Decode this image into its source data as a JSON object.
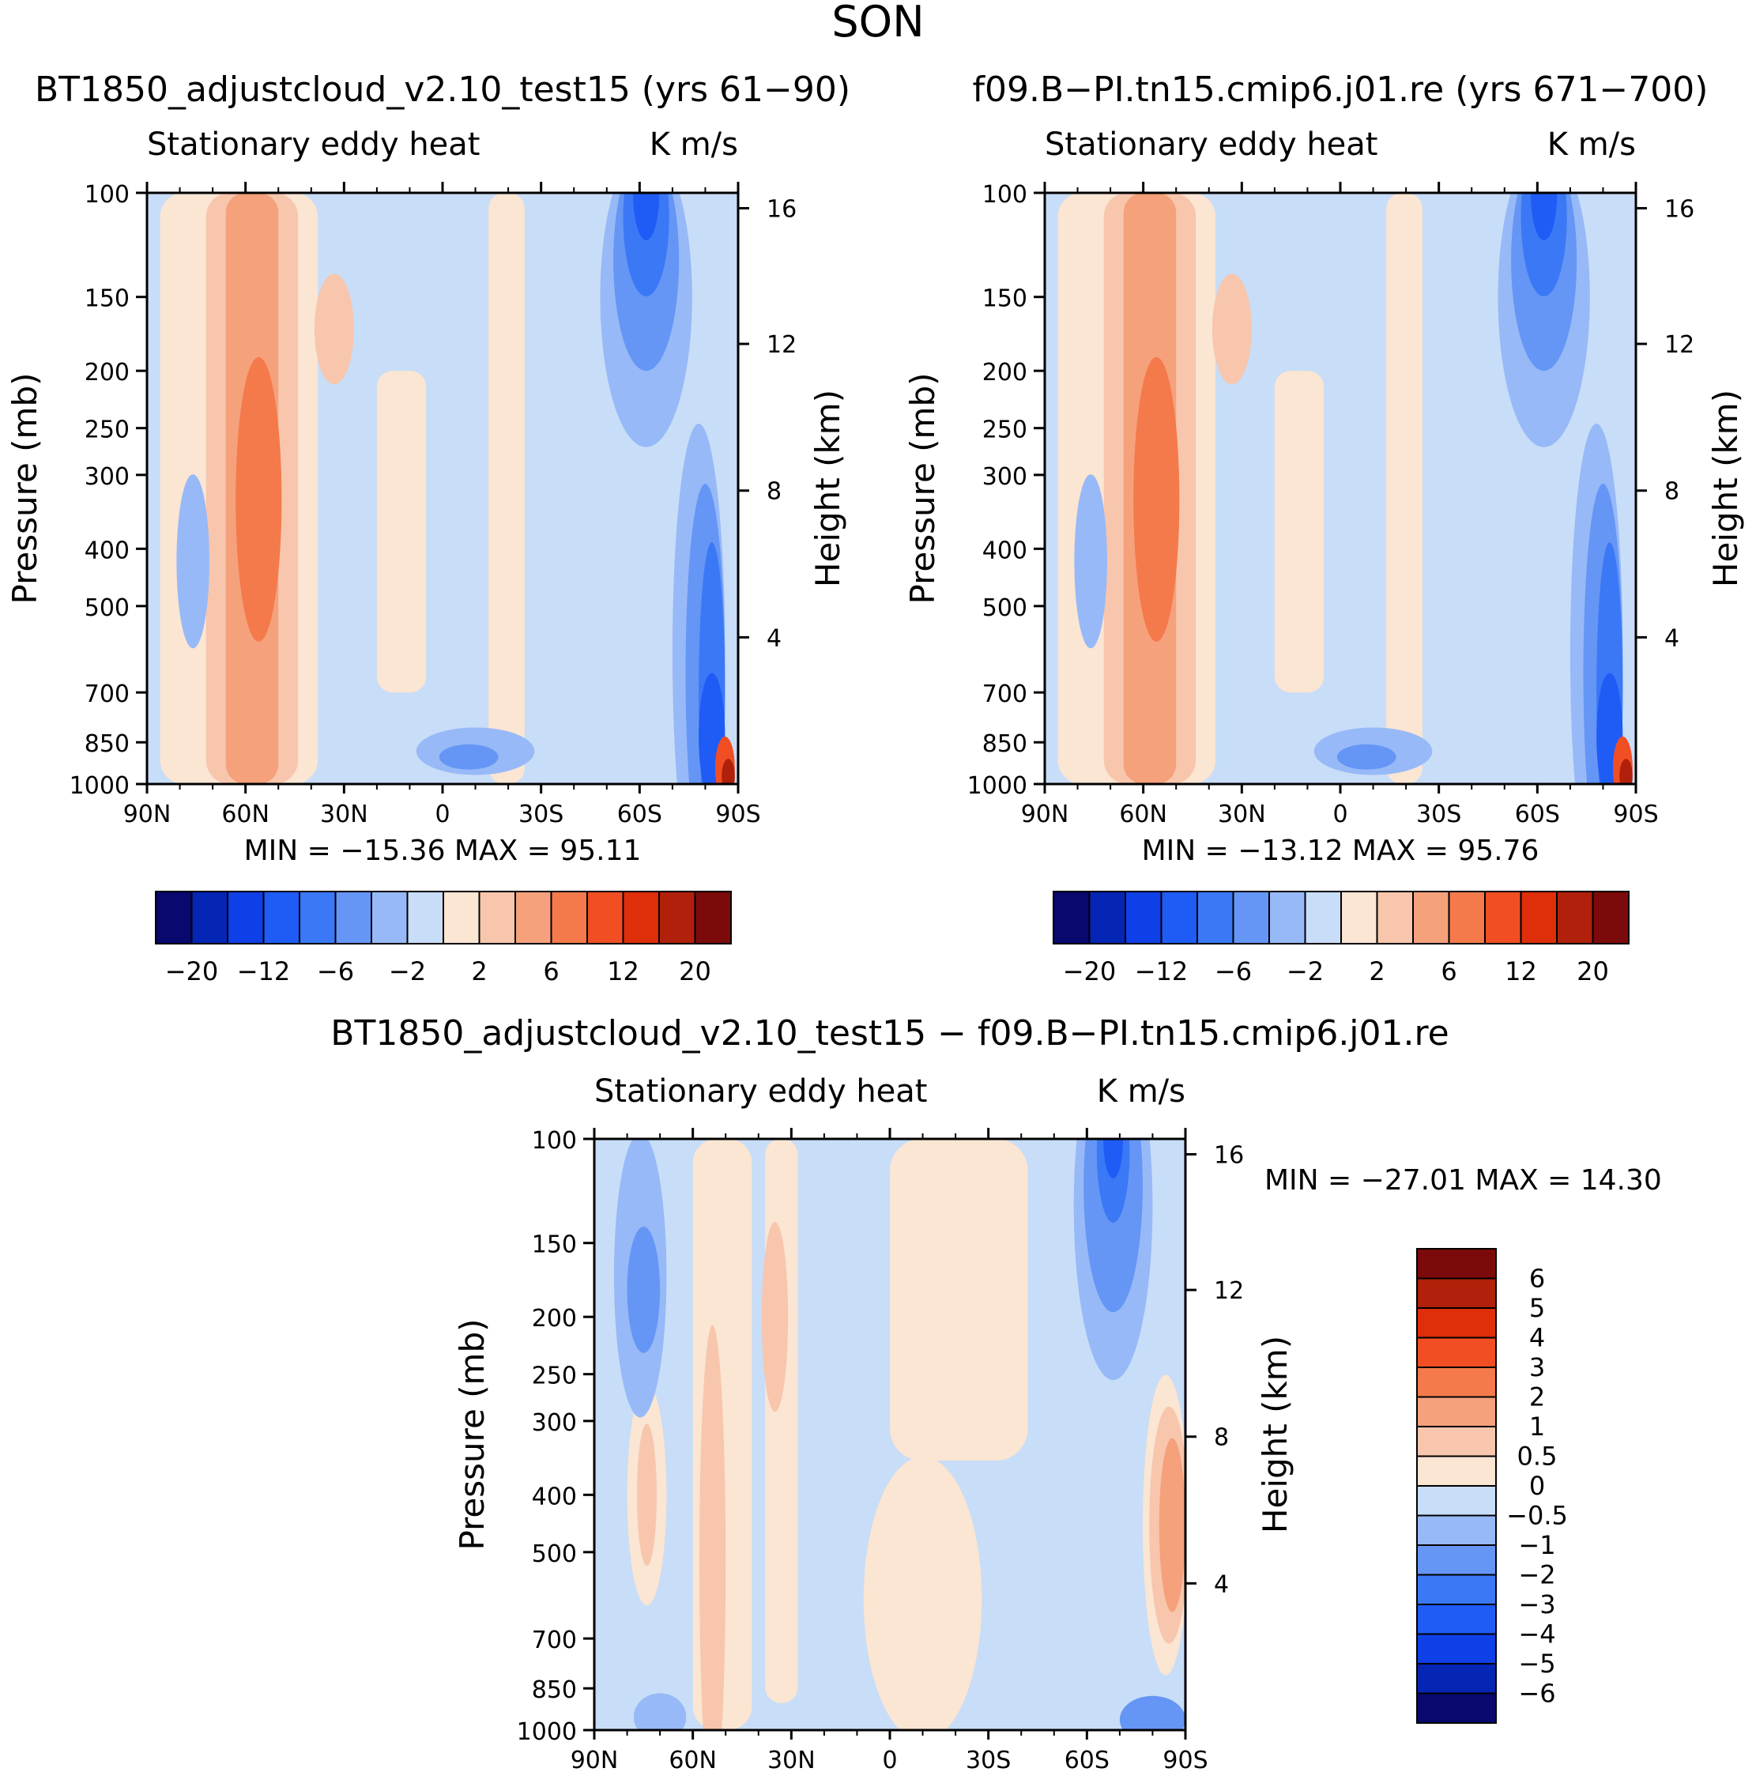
{
  "figure": {
    "title": "SON"
  },
  "palette": {
    "main": [
      "#08086e",
      "#0525b4",
      "#0f3fe6",
      "#1f5bf5",
      "#3b78f5",
      "#6596f5",
      "#97b9f7",
      "#c8ddf7",
      "#fbe5d3",
      "#f7c6ad",
      "#f5a17c",
      "#f47a4b",
      "#f14e23",
      "#de2e0a",
      "#b0200a",
      "#7d0a0a"
    ],
    "diff": [
      "#08086e",
      "#0525b4",
      "#0f3fe6",
      "#1f5bf5",
      "#3b78f5",
      "#6596f5",
      "#97b9f7",
      "#c8ddf7",
      "#fbe5d3",
      "#f7c6ad",
      "#f5a17c",
      "#f47a4b",
      "#f14e23",
      "#de2e0a",
      "#b0200a",
      "#7d0a0a"
    ]
  },
  "chart_data": [
    {
      "type": "contour",
      "title": "BT1850_adjustcloud_v2.10_test15 (yrs 61−90)",
      "subtitle_left": "Stationary eddy heat",
      "subtitle_right": "K m/s",
      "xlabel": "",
      "ylabel": "Pressure (mb)",
      "ylabel_right": "Height (km)",
      "x_ticks": [
        "90N",
        "60N",
        "30N",
        "0",
        "30S",
        "60S",
        "90S"
      ],
      "x_range": [
        90,
        -90
      ],
      "y_ticks": [
        "100",
        "150",
        "200",
        "250",
        "300",
        "400",
        "500",
        "700",
        "850",
        "1000"
      ],
      "y_range": [
        100,
        1000
      ],
      "height_ticks": [
        "16",
        "12",
        "8",
        "4"
      ],
      "min_label": "MIN =  −15.36   MAX =    95.11",
      "levels": [
        "−20",
        "−12",
        "−6",
        "−2",
        "2",
        "6",
        "12",
        "20"
      ],
      "min": -15.36,
      "max": 95.11
    },
    {
      "type": "contour",
      "title": "f09.B−PI.tn15.cmip6.j01.re (yrs 671−700)",
      "subtitle_left": "Stationary eddy heat",
      "subtitle_right": "K m/s",
      "xlabel": "",
      "ylabel": "Pressure (mb)",
      "ylabel_right": "Height (km)",
      "x_ticks": [
        "90N",
        "60N",
        "30N",
        "0",
        "30S",
        "60S",
        "90S"
      ],
      "x_range": [
        90,
        -90
      ],
      "y_ticks": [
        "100",
        "150",
        "200",
        "250",
        "300",
        "400",
        "500",
        "700",
        "850",
        "1000"
      ],
      "y_range": [
        100,
        1000
      ],
      "height_ticks": [
        "16",
        "12",
        "8",
        "4"
      ],
      "min_label": "MIN =  −13.12   MAX =    95.76",
      "levels": [
        "−20",
        "−12",
        "−6",
        "−2",
        "2",
        "6",
        "12",
        "20"
      ],
      "min": -13.12,
      "max": 95.76
    },
    {
      "type": "contour",
      "title": "BT1850_adjustcloud_v2.10_test15 − f09.B−PI.tn15.cmip6.j01.re",
      "subtitle_left": "Stationary eddy heat",
      "subtitle_right": "K m/s",
      "xlabel": "",
      "ylabel": "Pressure (mb)",
      "ylabel_right": "Height (km)",
      "x_ticks": [
        "90N",
        "60N",
        "30N",
        "0",
        "30S",
        "60S",
        "90S"
      ],
      "x_range": [
        90,
        -90
      ],
      "y_ticks": [
        "100",
        "150",
        "200",
        "250",
        "300",
        "400",
        "500",
        "700",
        "850",
        "1000"
      ],
      "y_range": [
        100,
        1000
      ],
      "height_ticks": [
        "16",
        "12",
        "8",
        "4"
      ],
      "min_label": "MIN =  −27.01   MAX =    14.30",
      "levels": [
        "6",
        "5",
        "4",
        "3",
        "2",
        "1",
        "0.5",
        "0",
        "−0.5",
        "−1",
        "−2",
        "−3",
        "−4",
        "−5",
        "−6"
      ],
      "min": -27.01,
      "max": 14.3
    }
  ]
}
